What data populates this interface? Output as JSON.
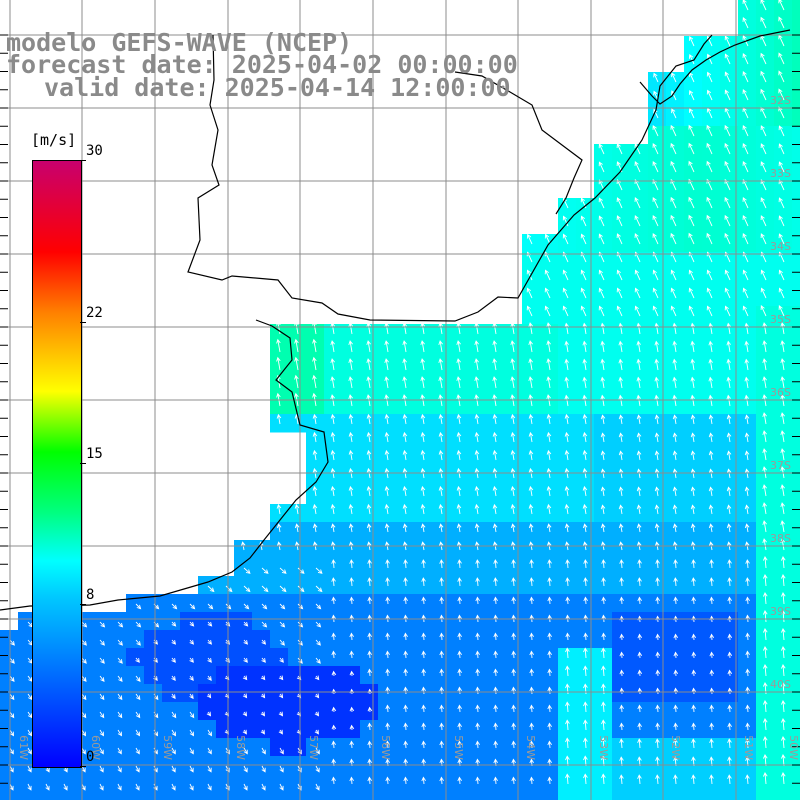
{
  "header": {
    "model": "modelo GEFS-WAVE (NCEP)",
    "forecast": "forecast date: 2025-04-02 00:00:00",
    "valid": "valid date: 2025-04-14 12:00:00"
  },
  "colorbar": {
    "unit": "[m/s]",
    "ticks": [
      {
        "label": "30",
        "value": 30
      },
      {
        "label": "22",
        "value": 22
      },
      {
        "label": "15",
        "value": 15
      },
      {
        "label": "8",
        "value": 8
      },
      {
        "label": "0",
        "value": 0
      }
    ]
  },
  "map": {
    "lat_labels": [
      "32S",
      "33S",
      "34S",
      "35S",
      "36S",
      "37S",
      "38S",
      "39S",
      "40S"
    ],
    "lon_labels": [
      "61W",
      "60W",
      "59W",
      "58W",
      "57W",
      "56W",
      "55W",
      "54W",
      "53W",
      "52W",
      "51W",
      "50W"
    ],
    "colors": {
      "land": "#ffffff",
      "coast": "#000000",
      "grid": "#8c8c8c",
      "vector": "#ffffff"
    }
  }
}
